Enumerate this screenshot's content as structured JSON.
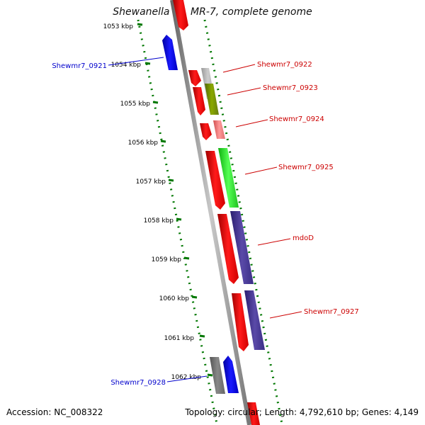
{
  "title": "Shewanella sp. MR-7, complete genome",
  "ticks": [
    {
      "label": "1053 kbp"
    },
    {
      "label": "1054 kbp"
    },
    {
      "label": "1055 kbp"
    },
    {
      "label": "1056 kbp"
    },
    {
      "label": "1057 kbp"
    },
    {
      "label": "1058 kbp"
    },
    {
      "label": "1059 kbp"
    },
    {
      "label": "1060 kbp"
    },
    {
      "label": "1061 kbp"
    },
    {
      "label": "1062 kbp"
    }
  ],
  "gene_labels": [
    {
      "name": "Shewmr7_0921",
      "color": "#0000cc"
    },
    {
      "name": "Shewmr7_0922",
      "color": "#cc0000"
    },
    {
      "name": "Shewmr7_0923",
      "color": "#cc0000"
    },
    {
      "name": "Shewmr7_0924",
      "color": "#cc0000"
    },
    {
      "name": "Shewmr7_0925",
      "color": "#cc0000"
    },
    {
      "name": "mdoD",
      "color": "#cc0000"
    },
    {
      "name": "Shewmr7_0927",
      "color": "#cc0000"
    },
    {
      "name": "Shewmr7_0928",
      "color": "#0000cc"
    }
  ],
  "footer": {
    "accession": "Accession: NC_008322",
    "topology": "Topology: circular; Length: 4,792,610 bp; Genes: 4,149"
  },
  "colors": {
    "forward_strand": "#ff0000",
    "reverse_strand": "#0000ff",
    "backbone": "#999999",
    "tick_marks": "#007700"
  }
}
